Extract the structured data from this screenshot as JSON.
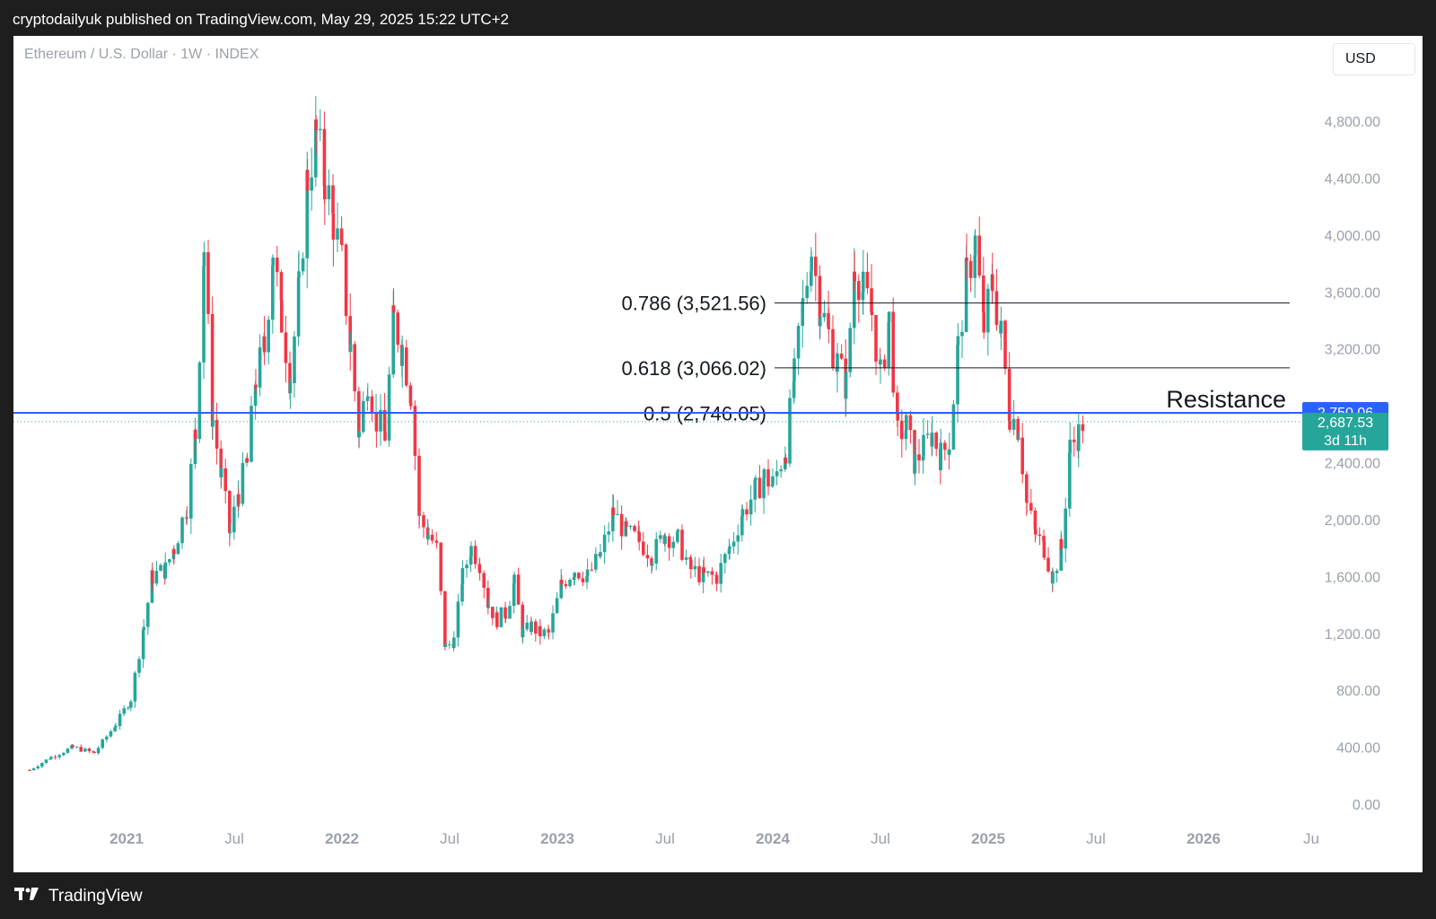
{
  "header": {
    "published_text": "cryptodailyuk published on TradingView.com, May 29, 2025 15:22 UTC+2"
  },
  "symbol_label": "Ethereum / U.S. Dollar · 1W · INDEX",
  "currency_button": "USD",
  "footer": {
    "brand": "TradingView",
    "logo_icon": "tradingview-logo-icon"
  },
  "colors": {
    "up": "#26a69a",
    "down": "#f23645",
    "resistance_line": "#2962ff",
    "fib_line": "#131722",
    "axis_text": "#9aa0ab",
    "price_label_bg": "#26a69a",
    "resistance_label_bg": "#2962ff"
  },
  "chart_data": {
    "type": "candlestick",
    "title": "Ethereum / U.S. Dollar · 1W · INDEX",
    "ylim": [
      0,
      4800
    ],
    "y_ticks": [
      "4,800.00",
      "4,400.00",
      "4,000.00",
      "3,600.00",
      "3,200.00",
      "2,400.00",
      "2,000.00",
      "1,600.00",
      "1,200.00",
      "800.00",
      "400.00",
      "0.00"
    ],
    "y_tick_values": [
      4800,
      4400,
      4000,
      3600,
      3200,
      2400,
      2000,
      1600,
      1200,
      800,
      400,
      0
    ],
    "x_ticks": [
      {
        "label": "2021",
        "year": 2021.0,
        "bold": true
      },
      {
        "label": "Jul",
        "year": 2021.5,
        "bold": false
      },
      {
        "label": "2022",
        "year": 2022.0,
        "bold": true
      },
      {
        "label": "Jul",
        "year": 2022.5,
        "bold": false
      },
      {
        "label": "2023",
        "year": 2023.0,
        "bold": true
      },
      {
        "label": "Jul",
        "year": 2023.5,
        "bold": false
      },
      {
        "label": "2024",
        "year": 2024.0,
        "bold": true
      },
      {
        "label": "Jul",
        "year": 2024.5,
        "bold": false
      },
      {
        "label": "2025",
        "year": 2025.0,
        "bold": true
      },
      {
        "label": "Jul",
        "year": 2025.5,
        "bold": false
      },
      {
        "label": "2026",
        "year": 2026.0,
        "bold": true
      },
      {
        "label": "Ju",
        "year": 2026.5,
        "bold": false
      }
    ],
    "fib_levels": [
      {
        "label": "0.786 (3,521.56)",
        "value": 3521.56
      },
      {
        "label": "0.618 (3,066.02)",
        "value": 3066.02
      },
      {
        "label": "0.5 (2,746.05)",
        "value": 2746.05
      }
    ],
    "fib_range_years": [
      2024.0,
      2026.4
    ],
    "resistance": {
      "label": "Resistance",
      "value": 2750.06,
      "value_label": "2,750.06"
    },
    "last_price": {
      "value": 2687.53,
      "value_label": "2,687.53",
      "countdown": "3d 11h"
    },
    "series": [
      {
        "name": "ETHUSD",
        "points": [
          [
            2020.55,
            240
          ],
          [
            2020.65,
            330
          ],
          [
            2020.75,
            400
          ],
          [
            2020.85,
            360
          ],
          [
            2020.95,
            560
          ],
          [
            2021.02,
            740
          ],
          [
            2021.08,
            1250
          ],
          [
            2021.12,
            1600
          ],
          [
            2021.18,
            1650
          ],
          [
            2021.22,
            1800
          ],
          [
            2021.28,
            2100
          ],
          [
            2021.32,
            2600
          ],
          [
            2021.36,
            3900
          ],
          [
            2021.4,
            2700
          ],
          [
            2021.44,
            2300
          ],
          [
            2021.48,
            1900
          ],
          [
            2021.52,
            2200
          ],
          [
            2021.56,
            2400
          ],
          [
            2021.6,
            3000
          ],
          [
            2021.64,
            3200
          ],
          [
            2021.68,
            3900
          ],
          [
            2021.72,
            3400
          ],
          [
            2021.76,
            3000
          ],
          [
            2021.8,
            3600
          ],
          [
            2021.84,
            4400
          ],
          [
            2021.88,
            4700
          ],
          [
            2021.92,
            4400
          ],
          [
            2021.96,
            4100
          ],
          [
            2022.0,
            3800
          ],
          [
            2022.04,
            3200
          ],
          [
            2022.08,
            2600
          ],
          [
            2022.12,
            3000
          ],
          [
            2022.16,
            2700
          ],
          [
            2022.2,
            2600
          ],
          [
            2022.24,
            3400
          ],
          [
            2022.28,
            3200
          ],
          [
            2022.32,
            2900
          ],
          [
            2022.36,
            2000
          ],
          [
            2022.4,
            1900
          ],
          [
            2022.44,
            1800
          ],
          [
            2022.48,
            1100
          ],
          [
            2022.52,
            1150
          ],
          [
            2022.56,
            1600
          ],
          [
            2022.6,
            1800
          ],
          [
            2022.64,
            1700
          ],
          [
            2022.68,
            1400
          ],
          [
            2022.72,
            1300
          ],
          [
            2022.76,
            1350
          ],
          [
            2022.8,
            1550
          ],
          [
            2022.84,
            1200
          ],
          [
            2022.88,
            1250
          ],
          [
            2022.92,
            1200
          ],
          [
            2022.96,
            1200
          ],
          [
            2023.02,
            1550
          ],
          [
            2023.08,
            1650
          ],
          [
            2023.14,
            1600
          ],
          [
            2023.2,
            1750
          ],
          [
            2023.26,
            2050
          ],
          [
            2023.32,
            1900
          ],
          [
            2023.38,
            1850
          ],
          [
            2023.44,
            1750
          ],
          [
            2023.5,
            1900
          ],
          [
            2023.56,
            1850
          ],
          [
            2023.62,
            1650
          ],
          [
            2023.68,
            1600
          ],
          [
            2023.74,
            1600
          ],
          [
            2023.8,
            1800
          ],
          [
            2023.86,
            2050
          ],
          [
            2023.92,
            2200
          ],
          [
            2023.96,
            2300
          ],
          [
            2024.0,
            2250
          ],
          [
            2024.06,
            2500
          ],
          [
            2024.1,
            3000
          ],
          [
            2024.14,
            3500
          ],
          [
            2024.18,
            3900
          ],
          [
            2024.22,
            3500
          ],
          [
            2024.26,
            3300
          ],
          [
            2024.3,
            3100
          ],
          [
            2024.34,
            2950
          ],
          [
            2024.38,
            3800
          ],
          [
            2024.42,
            3600
          ],
          [
            2024.46,
            3450
          ],
          [
            2024.5,
            3000
          ],
          [
            2024.54,
            3400
          ],
          [
            2024.58,
            2600
          ],
          [
            2024.62,
            2650
          ],
          [
            2024.66,
            2400
          ],
          [
            2024.7,
            2500
          ],
          [
            2024.74,
            2600
          ],
          [
            2024.78,
            2450
          ],
          [
            2024.82,
            2550
          ],
          [
            2024.86,
            3200
          ],
          [
            2024.9,
            3700
          ],
          [
            2024.94,
            3950
          ],
          [
            2024.98,
            3350
          ],
          [
            2025.02,
            3650
          ],
          [
            2025.06,
            3300
          ],
          [
            2025.1,
            2750
          ],
          [
            2025.14,
            2650
          ],
          [
            2025.18,
            2100
          ],
          [
            2025.22,
            1900
          ],
          [
            2025.26,
            1800
          ],
          [
            2025.3,
            1600
          ],
          [
            2025.34,
            1800
          ],
          [
            2025.38,
            2500
          ],
          [
            2025.42,
            2600
          ],
          [
            2025.44,
            2687
          ]
        ]
      }
    ]
  }
}
